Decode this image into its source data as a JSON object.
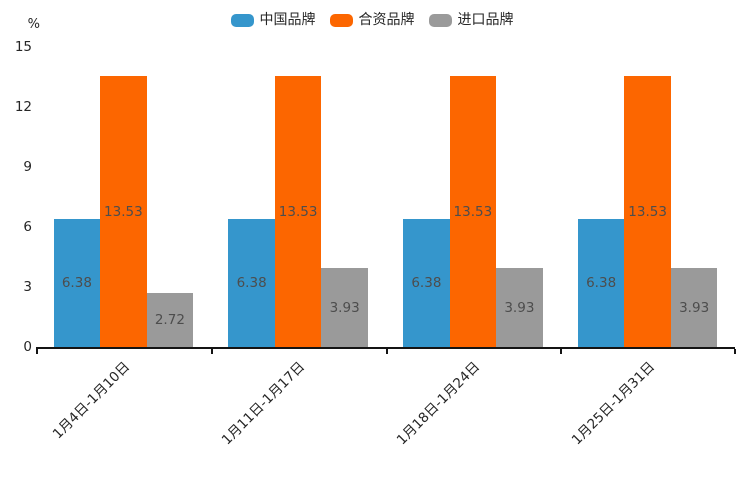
{
  "chart_data": {
    "type": "bar",
    "title": "",
    "categories": [
      "1月4日-1月10日",
      "1月11日-1月17日",
      "1月18日-1月24日",
      "1月25日-1月31日"
    ],
    "series": [
      {
        "name": "中国品牌",
        "color": "#3596CC",
        "values": [
          6.38,
          6.38,
          6.38,
          6.38
        ]
      },
      {
        "name": "合资品牌",
        "color": "#FC6600",
        "values": [
          13.53,
          13.53,
          13.53,
          13.53
        ]
      },
      {
        "name": "进口品牌",
        "color": "#9A9A9A",
        "values": [
          2.72,
          3.93,
          3.93,
          3.93
        ]
      }
    ],
    "xlabel": "",
    "ylabel": "%",
    "ylim": [
      0,
      15
    ],
    "yticks": [
      0,
      3,
      6,
      9,
      12,
      15
    ],
    "grid": false,
    "legend_position": "top",
    "value_labels": true,
    "axis_color": "#141414",
    "value_label_color": "#4D4D4D"
  },
  "y_axis": {
    "unit": "%",
    "tick_labels_top_to_bottom": [
      "15",
      "12",
      "9",
      "6",
      "3",
      "0"
    ]
  }
}
